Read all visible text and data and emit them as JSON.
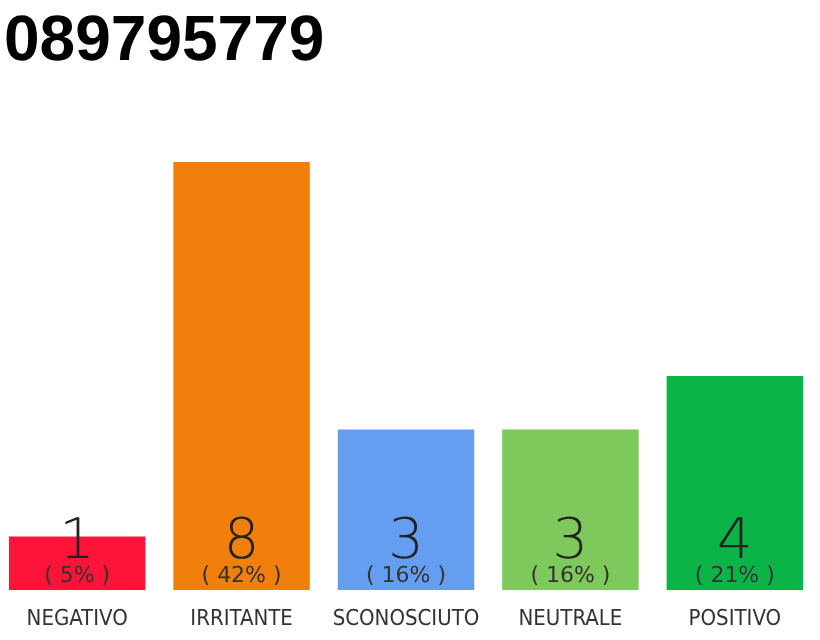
{
  "chart_data": {
    "type": "bar",
    "title": "089795779",
    "categories": [
      "NEGATIVO",
      "IRRITANTE",
      "SCONOSCIUTO",
      "NEUTRALE",
      "POSITIVO"
    ],
    "values": [
      1,
      8,
      3,
      3,
      4
    ],
    "colors": [
      "#ff1439",
      "#f07f0c",
      "#659ef0",
      "#7ec95c",
      "#0bb446"
    ],
    "data_labels": true,
    "annotations": [
      "( 5% )",
      "( 42% )",
      "( 16% )",
      "( 16% )",
      "( 21% )"
    ]
  }
}
